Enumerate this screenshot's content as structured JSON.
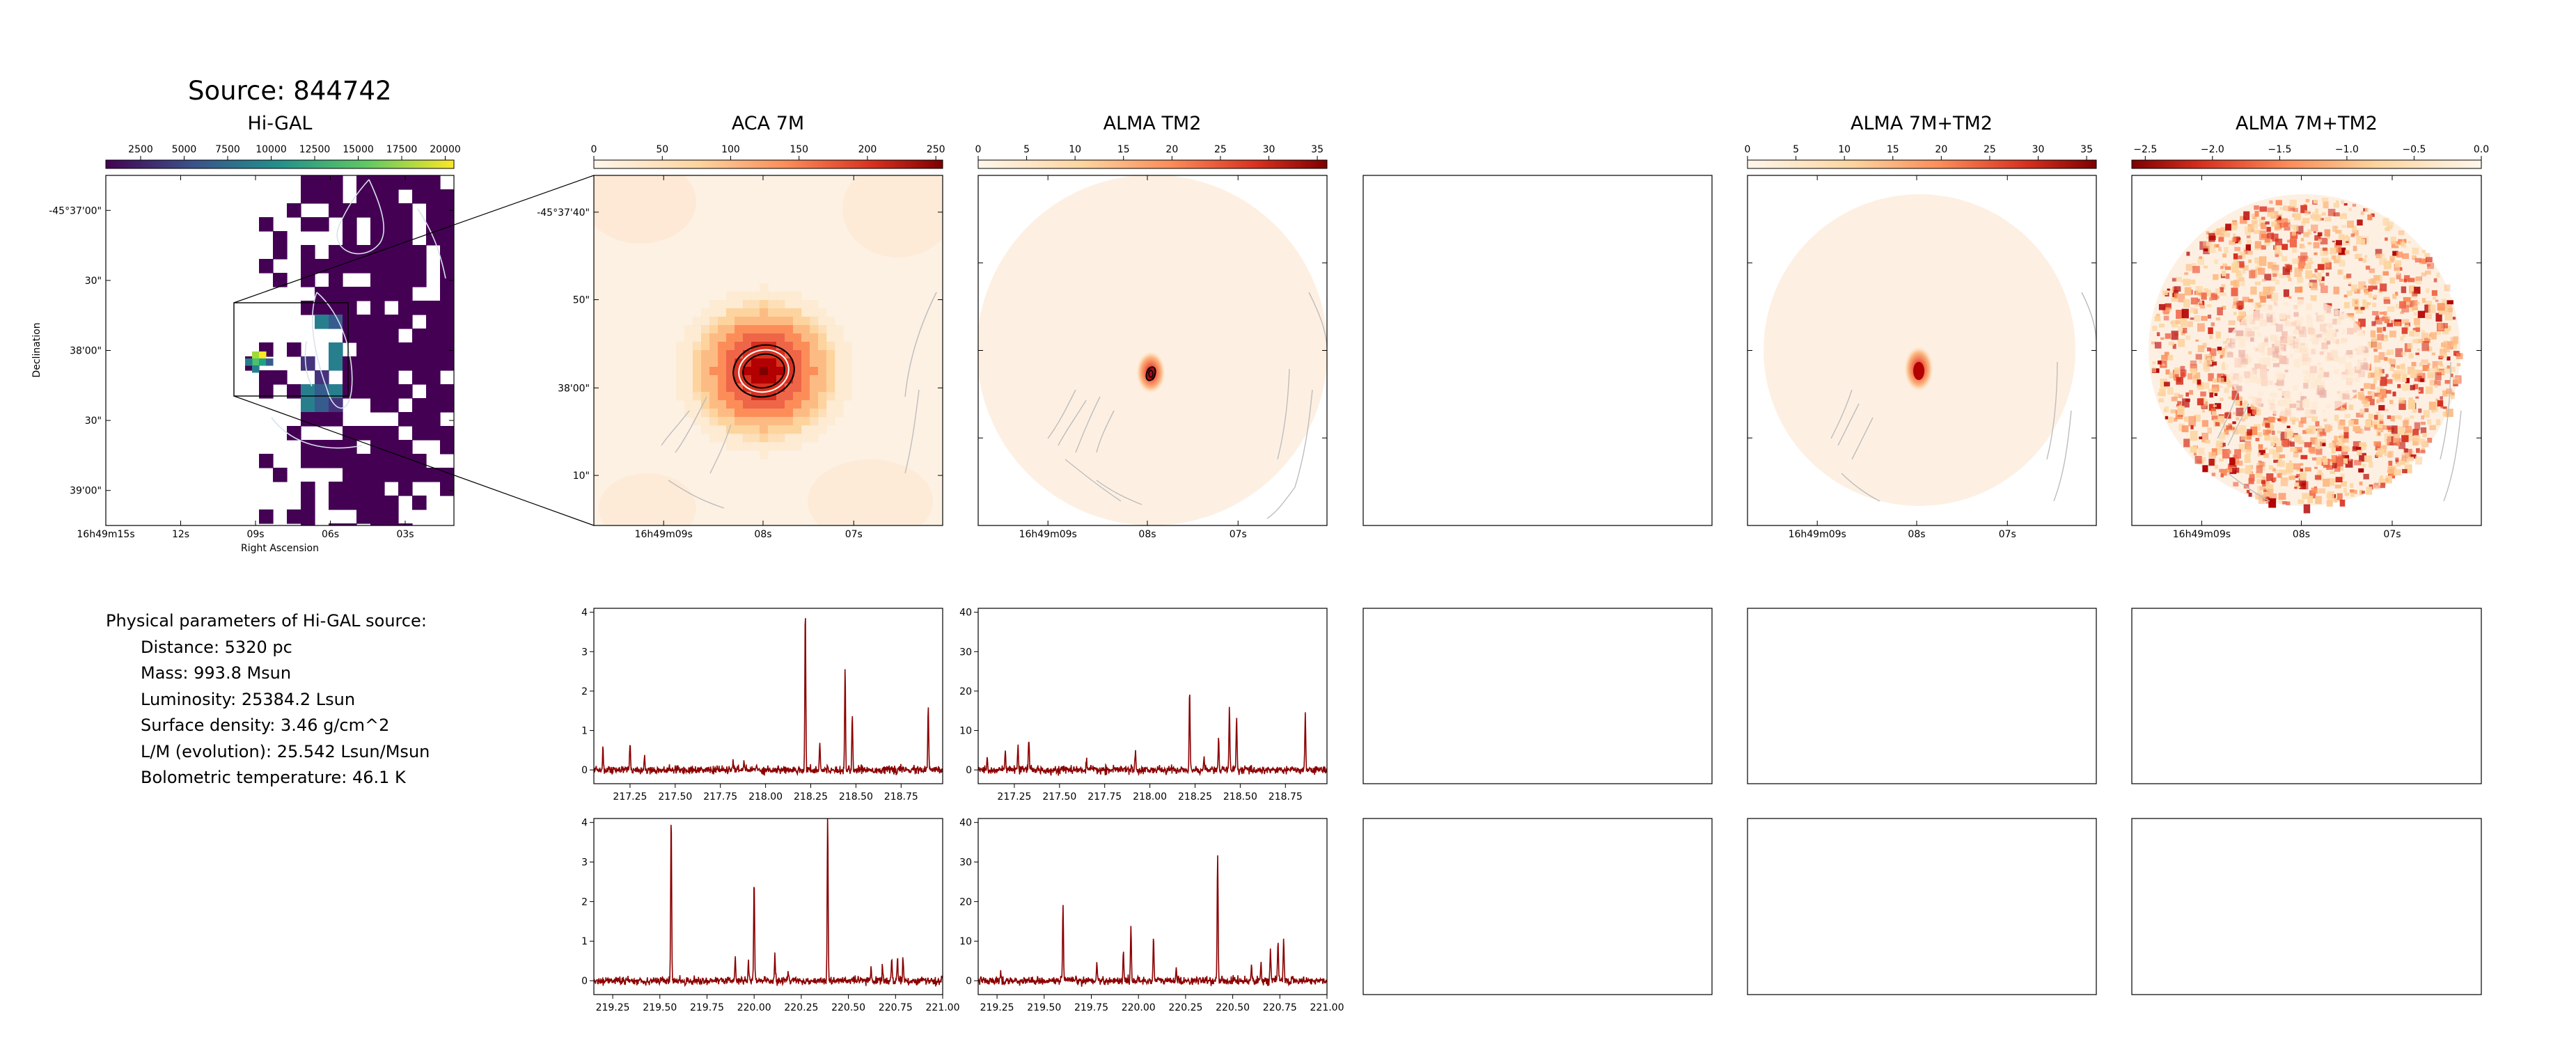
{
  "source_title": "Source: 844742",
  "physical_params": {
    "header": "Physical parameters of Hi-GAL source:",
    "lines": [
      "Distance: 5320 pc",
      "Mass: 993.8 Msun",
      "Luminosity: 25384.2 Lsun",
      "Surface density: 3.46 g/cm^2",
      "L/M (evolution): 25.542 Lsun/Msun",
      "Bolometric temperature: 46.1 K"
    ]
  },
  "colors": {
    "spectrum_line": "#8b0000",
    "colormap_viridis": [
      "#440154",
      "#3b528b",
      "#21918c",
      "#5ec962",
      "#fde725"
    ],
    "colormap_orrd": [
      "#fff7ec",
      "#fdd49e",
      "#fc8d59",
      "#d7301f",
      "#7f0000"
    ]
  },
  "chart_data": [
    {
      "type": "heatmap",
      "title": "Hi-GAL",
      "colormap": "viridis",
      "colorbar_ticks": [
        "2500",
        "5000",
        "7500",
        "10000",
        "12500",
        "15000",
        "17500",
        "20000"
      ],
      "colorbar_range": [
        500,
        20500
      ],
      "xlabel": "Right Ascension",
      "ylabel": "Declination",
      "x_ticks": [
        "16h49m15s",
        "12s",
        "09s",
        "06s",
        "03s"
      ],
      "y_ticks": [
        "-45°37'00\"",
        "30\"",
        "38'00\"",
        "30\"",
        "39'00\""
      ]
    },
    {
      "type": "heatmap",
      "title": "ACA 7M",
      "colormap": "OrRd",
      "colorbar_ticks": [
        "0",
        "50",
        "100",
        "150",
        "200",
        "250"
      ],
      "colorbar_range": [
        0,
        255
      ],
      "x_ticks": [
        "16h49m09s",
        "08s",
        "07s"
      ],
      "y_ticks": [
        "-45°37'40\"",
        "50\"",
        "38'00\"",
        "10\""
      ]
    },
    {
      "type": "heatmap",
      "title": "ALMA TM2",
      "colormap": "OrRd",
      "colorbar_ticks": [
        "0",
        "5",
        "10",
        "15",
        "20",
        "25",
        "30",
        "35"
      ],
      "colorbar_range": [
        0,
        36
      ],
      "x_ticks": [
        "16h49m09s",
        "08s",
        "07s"
      ]
    },
    {
      "type": "heatmap",
      "title": "ALMA 7M+TM2",
      "colormap": "OrRd",
      "colorbar_ticks": [
        "0",
        "5",
        "10",
        "15",
        "20",
        "25",
        "30",
        "35"
      ],
      "colorbar_range": [
        0,
        36
      ],
      "x_ticks": [
        "16h49m09s",
        "08s",
        "07s"
      ]
    },
    {
      "type": "heatmap",
      "title": "ALMA 7M+TM2",
      "colormap": "OrRd_r",
      "colorbar_ticks": [
        "−2.5",
        "−2.0",
        "−1.5",
        "−1.0",
        "−0.5",
        "0.0"
      ],
      "colorbar_range": [
        -2.6,
        0.0
      ],
      "x_ticks": [
        "16h49m09s",
        "08s",
        "07s"
      ]
    },
    {
      "type": "line",
      "panel": "ACA 7M spectrum, band 1",
      "xlim": [
        217.05,
        218.98
      ],
      "ylim": [
        -0.35,
        4.1
      ],
      "x_ticks": [
        217.25,
        217.5,
        217.75,
        218.0,
        218.25,
        218.5,
        218.75
      ],
      "x_tick_labels": [
        "217.25",
        "217.50",
        "217.75",
        "218.00",
        "218.25",
        "218.50",
        "218.75"
      ],
      "y_ticks": [
        0,
        1,
        2,
        3,
        4
      ],
      "noise": 0.05,
      "peaks": [
        [
          217.1,
          0.6
        ],
        [
          217.25,
          0.7
        ],
        [
          217.33,
          0.35
        ],
        [
          217.82,
          0.25
        ],
        [
          217.88,
          0.2
        ],
        [
          217.95,
          0.15
        ],
        [
          218.22,
          4.2
        ],
        [
          218.3,
          0.7
        ],
        [
          218.44,
          2.6
        ],
        [
          218.48,
          1.4
        ],
        [
          218.9,
          1.6
        ]
      ]
    },
    {
      "type": "line",
      "panel": "ALMA TM2 spectrum, band 1",
      "xlim": [
        217.05,
        218.98
      ],
      "ylim": [
        -3.5,
        41
      ],
      "x_ticks": [
        217.25,
        217.5,
        217.75,
        218.0,
        218.25,
        218.5,
        218.75
      ],
      "x_tick_labels": [
        "217.25",
        "217.50",
        "217.75",
        "218.00",
        "218.25",
        "218.50",
        "218.75"
      ],
      "y_ticks": [
        0,
        10,
        20,
        30,
        40
      ],
      "noise": 0.5,
      "peaks": [
        [
          217.1,
          3
        ],
        [
          217.2,
          5
        ],
        [
          217.27,
          6
        ],
        [
          217.33,
          8
        ],
        [
          217.65,
          2
        ],
        [
          217.92,
          5
        ],
        [
          218.22,
          20
        ],
        [
          218.3,
          3
        ],
        [
          218.38,
          8
        ],
        [
          218.44,
          16
        ],
        [
          218.48,
          14
        ],
        [
          218.86,
          14
        ]
      ]
    },
    {
      "type": "line",
      "panel": "ACA 7M spectrum, band 2",
      "xlim": [
        219.15,
        221.0
      ],
      "ylim": [
        -0.35,
        4.1
      ],
      "x_ticks": [
        219.25,
        219.5,
        219.75,
        220.0,
        220.25,
        220.5,
        220.75,
        221.0
      ],
      "x_tick_labels": [
        "219.25",
        "219.50",
        "219.75",
        "220.00",
        "220.25",
        "220.50",
        "220.75",
        "221.00"
      ],
      "y_ticks": [
        0,
        1,
        2,
        3,
        4
      ],
      "noise": 0.05,
      "peaks": [
        [
          219.56,
          4.2
        ],
        [
          219.9,
          0.6
        ],
        [
          219.97,
          0.5
        ],
        [
          220.0,
          2.6
        ],
        [
          220.11,
          0.6
        ],
        [
          220.18,
          0.3
        ],
        [
          220.39,
          4.2
        ],
        [
          220.62,
          0.3
        ],
        [
          220.68,
          0.4
        ],
        [
          220.73,
          0.5
        ],
        [
          220.76,
          0.6
        ],
        [
          220.79,
          0.6
        ]
      ]
    },
    {
      "type": "line",
      "panel": "ALMA TM2 spectrum, band 2",
      "xlim": [
        219.15,
        221.0
      ],
      "ylim": [
        -3.5,
        41
      ],
      "x_ticks": [
        219.25,
        219.5,
        219.75,
        220.0,
        220.25,
        220.5,
        220.75,
        221.0
      ],
      "x_tick_labels": [
        "219.25",
        "219.50",
        "219.75",
        "220.00",
        "220.25",
        "220.50",
        "220.75",
        "221.00"
      ],
      "y_ticks": [
        0,
        10,
        20,
        30,
        40
      ],
      "noise": 0.5,
      "peaks": [
        [
          219.27,
          2
        ],
        [
          219.6,
          19
        ],
        [
          219.78,
          5
        ],
        [
          219.92,
          7
        ],
        [
          219.96,
          14
        ],
        [
          220.08,
          11
        ],
        [
          220.2,
          3
        ],
        [
          220.42,
          32
        ],
        [
          220.6,
          4
        ],
        [
          220.65,
          5
        ],
        [
          220.7,
          8
        ],
        [
          220.74,
          10
        ],
        [
          220.77,
          11
        ]
      ]
    }
  ]
}
